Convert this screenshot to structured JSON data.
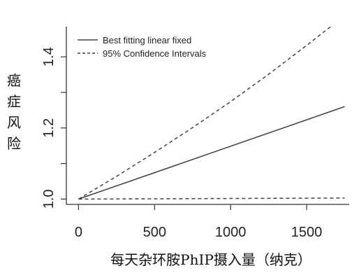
{
  "chart_data": {
    "type": "line",
    "title": "",
    "xlabel": "每天杂环胺PhIP摄入量（纳克）",
    "ylabel": "癌症风险",
    "xlim": [
      -80,
      1780
    ],
    "ylim": [
      0.985,
      1.485
    ],
    "x_ticks": [
      0,
      500,
      1000,
      1500
    ],
    "x_tick_labels": [
      "0",
      "500",
      "1000",
      "1500"
    ],
    "y_ticks": [
      1.0,
      1.2,
      1.4
    ],
    "y_tick_labels": [
      "1.0",
      "1.2",
      "1.4"
    ],
    "y_minor_ticks": [
      1.1,
      1.3
    ],
    "grid": false,
    "legend_position": "top-left",
    "series": [
      {
        "name": "Best fitting linear fixed",
        "style": "solid",
        "color": "#444444",
        "x": [
          0,
          1750
        ],
        "y": [
          1.0,
          1.26
        ]
      },
      {
        "name": "95% Confidence Intervals",
        "style": "dashed",
        "color": "#444444",
        "x": [
          0,
          250,
          500,
          750,
          1000,
          1250,
          1500,
          1750
        ],
        "y": [
          1.0,
          1.064,
          1.131,
          1.201,
          1.274,
          1.351,
          1.432,
          1.516
        ]
      },
      {
        "name": "",
        "style": "dashed",
        "color": "#444444",
        "x": [
          0,
          1750
        ],
        "y": [
          1.0,
          1.003
        ]
      }
    ]
  }
}
